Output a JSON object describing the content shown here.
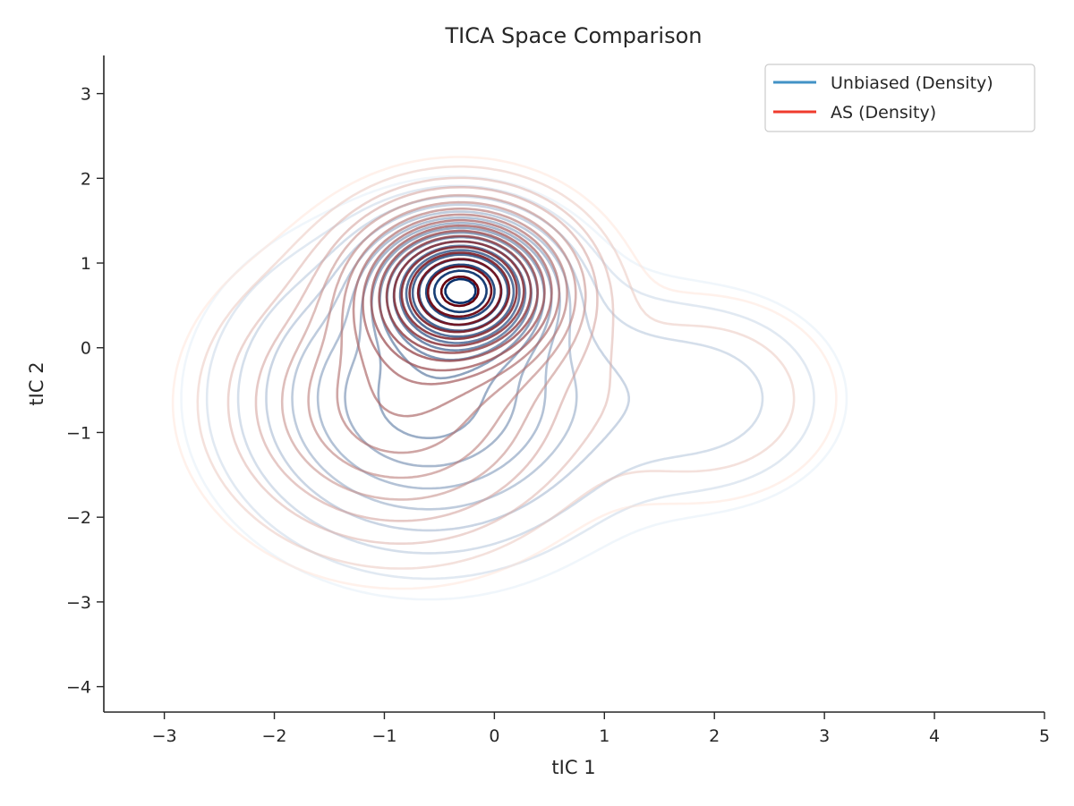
{
  "chart_data": {
    "type": "contour",
    "title": "TICA Space Comparison",
    "xlabel": "tIC 1",
    "ylabel": "tIC 2",
    "xlim": [
      -3.55,
      5.0
    ],
    "ylim": [
      -4.3,
      3.45
    ],
    "xticks": [
      -3,
      -2,
      -1,
      0,
      1,
      2,
      3,
      4,
      5
    ],
    "yticks": [
      -4,
      -3,
      -2,
      -1,
      0,
      1,
      2,
      3
    ],
    "xtick_labels": [
      "−3",
      "−2",
      "−1",
      "0",
      "1",
      "2",
      "3",
      "4",
      "5"
    ],
    "ytick_labels": [
      "−4",
      "−3",
      "−2",
      "−1",
      "0",
      "1",
      "2",
      "3"
    ],
    "grid": false,
    "legend": {
      "position": "top-right",
      "entries": [
        {
          "label": "Unbiased (Density)",
          "color": "#4292c6"
        },
        {
          "label": "AS (Density)",
          "color": "#ef3b2c"
        }
      ]
    },
    "series": [
      {
        "name": "Unbiased (Density)",
        "colormap": "Blues",
        "color_light": "#deebf7",
        "color_dark": "#08306b",
        "components": [
          {
            "cx": -0.3,
            "cy": 0.7,
            "sx": 0.42,
            "sy": 0.42,
            "w": 1.0
          },
          {
            "cx": -0.6,
            "cy": -0.6,
            "sx": 0.9,
            "sy": 0.95,
            "w": 0.3
          },
          {
            "cx": 1.9,
            "cy": -0.6,
            "sx": 0.75,
            "sy": 0.75,
            "w": 0.06
          }
        ],
        "contour_extents": {
          "x": [
            -2.4,
            2.9
          ],
          "y": [
            -2.6,
            2.35
          ]
        }
      },
      {
        "name": "AS (Density)",
        "colormap": "Reds",
        "color_light": "#fee0d2",
        "color_dark": "#67000d",
        "components": [
          {
            "cx": -0.3,
            "cy": 0.7,
            "sx": 0.52,
            "sy": 0.52,
            "w": 1.0
          },
          {
            "cx": -0.85,
            "cy": -0.65,
            "sx": 0.85,
            "sy": 0.9,
            "w": 0.25
          },
          {
            "cx": 1.9,
            "cy": -0.6,
            "sx": 0.8,
            "sy": 0.8,
            "w": 0.04
          }
        ],
        "contour_extents": {
          "x": [
            -2.5,
            3.2
          ],
          "y": [
            -3.1,
            2.6
          ]
        }
      }
    ]
  }
}
